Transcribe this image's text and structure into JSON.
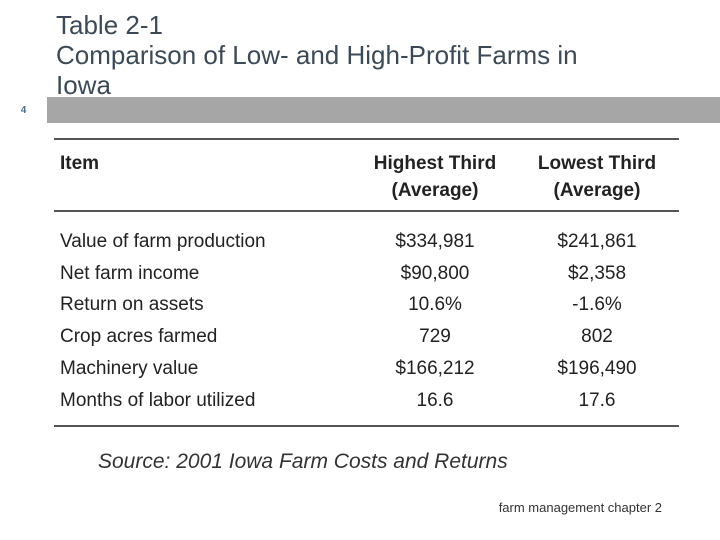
{
  "slide": {
    "number": "4",
    "title_lines": [
      "Table 2-1",
      "Comparison of Low- and High-Profit Farms in",
      "Iowa"
    ],
    "accent_color": "#a6a6a6"
  },
  "table": {
    "headers": {
      "item": "Item",
      "highest": [
        "Highest Third",
        "(Average)"
      ],
      "lowest": [
        "Lowest Third",
        "(Average)"
      ]
    },
    "rows": [
      {
        "item": "Value of farm production",
        "highest": "$334,981",
        "lowest": "$241,861"
      },
      {
        "item": "Net farm income",
        "highest": "$90,800",
        "lowest": "$2,358"
      },
      {
        "item": "Return on assets",
        "highest": "10.6%",
        "lowest": "-1.6%"
      },
      {
        "item": "Crop acres farmed",
        "highest": "729",
        "lowest": "802"
      },
      {
        "item": "Machinery value",
        "highest": "$166,212",
        "lowest": "$196,490"
      },
      {
        "item": "Months of labor utilized",
        "highest": "16.6",
        "lowest": "17.6"
      }
    ]
  },
  "source": "Source:  2001 Iowa Farm Costs and Returns",
  "footer": "farm management chapter 2"
}
